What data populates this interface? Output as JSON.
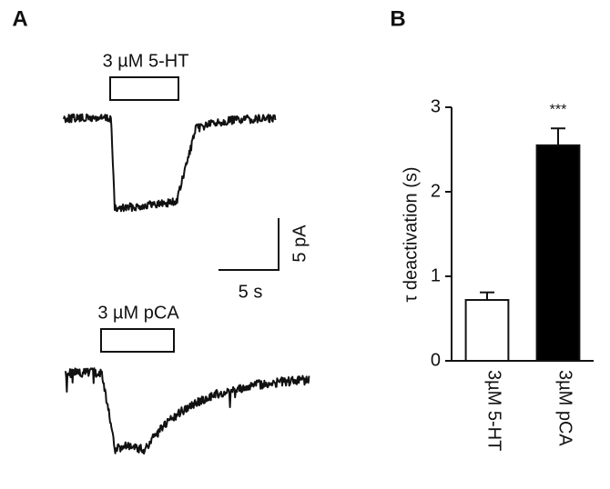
{
  "panel_a": {
    "label": "A",
    "drug_1": "3 µM 5-HT",
    "drug_2": "3 µM pCA",
    "scale_current": "5 pA",
    "scale_time": "5 s"
  },
  "chart_data": {
    "type": "bar",
    "panel_label": "B",
    "y_label": "τ deactivation (s)",
    "categories": [
      "3µM 5-HT",
      "3µM pCA"
    ],
    "values": [
      0.72,
      2.55
    ],
    "errors": [
      0.09,
      0.2
    ],
    "colors": [
      "#ffffff",
      "#000000"
    ],
    "annotations": [
      "",
      "***"
    ],
    "ylim": [
      0,
      3
    ],
    "yticks": [
      0,
      1,
      2,
      3
    ]
  }
}
